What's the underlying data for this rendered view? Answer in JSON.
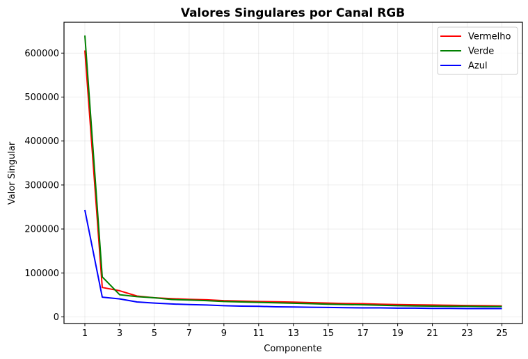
{
  "chart_data": {
    "type": "line",
    "title": "Valores Singulares por Canal RGB",
    "xlabel": "Componente",
    "ylabel": "Valor Singular",
    "x": [
      1,
      2,
      3,
      4,
      5,
      6,
      7,
      8,
      9,
      10,
      11,
      12,
      13,
      14,
      15,
      16,
      17,
      18,
      19,
      20,
      21,
      22,
      23,
      24,
      25
    ],
    "xticks": [
      1,
      3,
      5,
      7,
      9,
      11,
      13,
      15,
      17,
      19,
      21,
      23,
      25
    ],
    "yticks": [
      0,
      100000,
      200000,
      300000,
      400000,
      500000,
      600000
    ],
    "xlim": [
      -0.2,
      26.2
    ],
    "ylim": [
      -15000,
      670000
    ],
    "grid": true,
    "legend_position": "upper right",
    "series": [
      {
        "name": "Vermelho",
        "color": "#ff0000",
        "values": [
          606000,
          67000,
          59500,
          47500,
          43500,
          41500,
          40000,
          39000,
          37000,
          36000,
          35000,
          34500,
          33500,
          32500,
          31500,
          30500,
          30000,
          29000,
          28000,
          27500,
          27000,
          26500,
          26000,
          25500,
          25000
        ]
      },
      {
        "name": "Verde",
        "color": "#008000",
        "values": [
          640000,
          91000,
          50500,
          46000,
          43500,
          39500,
          38500,
          37000,
          35000,
          34000,
          33000,
          32000,
          31000,
          30000,
          29000,
          28000,
          27500,
          26500,
          25500,
          25000,
          24500,
          24000,
          24000,
          23500,
          23500
        ]
      },
      {
        "name": "Azul",
        "color": "#0000ff",
        "values": [
          243000,
          45000,
          41000,
          34000,
          31500,
          29500,
          28000,
          27000,
          25500,
          24500,
          24000,
          23000,
          22500,
          22000,
          21500,
          21000,
          20500,
          20500,
          20000,
          20000,
          19500,
          19500,
          19000,
          19000,
          19000
        ]
      }
    ]
  }
}
